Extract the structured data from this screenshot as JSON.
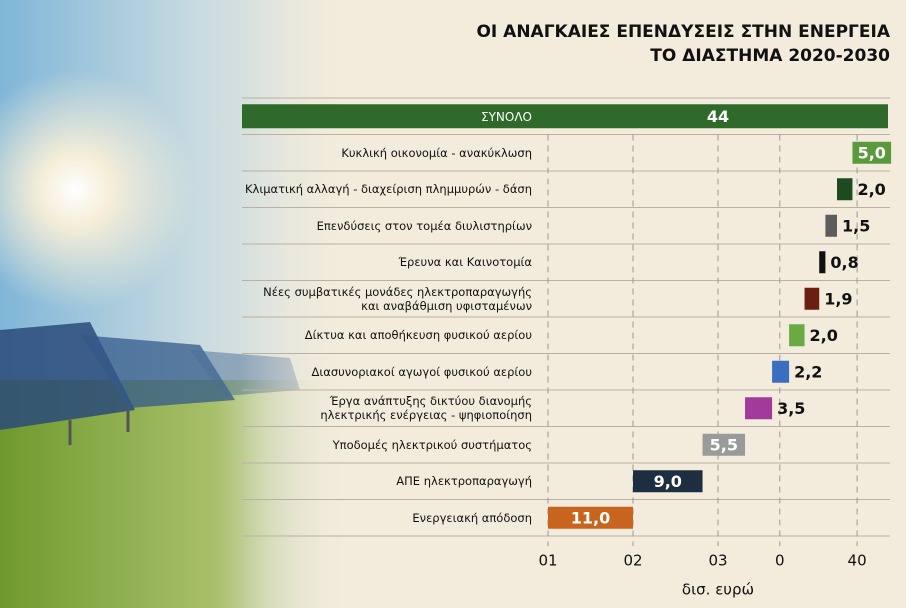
{
  "chart_data": {
    "type": "waterfall",
    "title": [
      "ΟΙ ΑΝΑΓΚΑΙΕΣ ΕΠΕΝΔΥΣΕΙΣ ΣΤΗΝ ΕΝΕΡΓΕΙΑ",
      "ΤΟ ΔΙΑΣΤΗΜΑ 2020-2030"
    ],
    "x_label": "δισ. ευρώ",
    "categories": [
      "ΣΥΝΟΛΟ",
      "Κυκλική οικονομία - ανακύκλωση",
      "Κλιματική αλλαγή - διαχείριση πλημμυρών - δάση",
      "Επενδύσεις στον τομέα διυλιστηρίων",
      "Έρευνα και Καινοτομία",
      "Νέες συμβατικές μονάδες ηλεκτροπαραγωγής\nκαι αναβάθμιση υφισταμένων",
      "Δίκτυα και αποθήκευση φυσικού αερίου",
      "Διασυνοριακοί αγωγοί φυσικού αερίου",
      "Έργα ανάπτυξης δικτύου διανομής\nηλεκτρικής ενέργειας - ψηφιοποίηση",
      "Υποδομές ηλεκτρικού συστήματος",
      "ΑΠΕ ηλεκτροπαραγωγή",
      "Ενεργειακή απόδοση"
    ],
    "values": [
      44,
      5.0,
      2.0,
      1.5,
      0.8,
      1.9,
      2.0,
      2.2,
      3.5,
      5.5,
      9.0,
      11.0
    ],
    "value_labels": [
      "44",
      "5,0",
      "2,0",
      "1,5",
      "0,8",
      "1,9",
      "2,0",
      "2,2",
      "3,5",
      "5,5",
      "9,0",
      "11,0"
    ],
    "is_total": [
      true,
      false,
      false,
      false,
      false,
      false,
      false,
      false,
      false,
      false,
      false,
      false
    ],
    "colors": [
      "#2f6a2b",
      "#5a9a3c",
      "#1f4a1f",
      "#5c5c5c",
      "#111111",
      "#6b1f12",
      "#6aaa42",
      "#3a6fc0",
      "#a23a9c",
      "#9a9a9a",
      "#1d2e40",
      "#c8641e"
    ],
    "xlim": [
      0,
      44
    ],
    "xticks": [
      {
        "value": 0,
        "label": "01"
      },
      {
        "value": 11,
        "label": "02"
      },
      {
        "value": 22,
        "label": "03"
      },
      {
        "value": 30,
        "label": "0"
      },
      40
    ],
    "grid": true
  }
}
